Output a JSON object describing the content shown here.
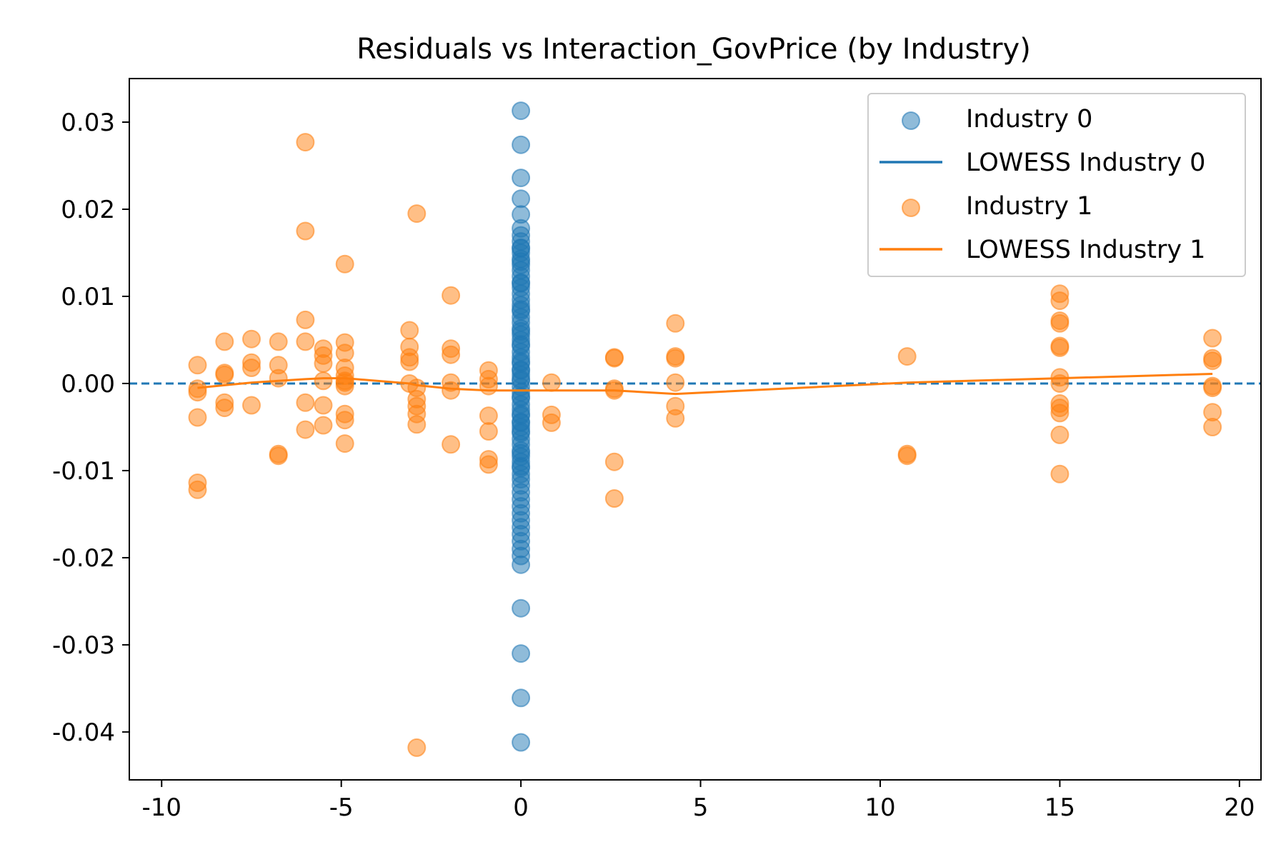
{
  "chart_data": {
    "type": "scatter",
    "title": "Residuals vs Interaction_GovPrice (by Industry)",
    "xlabel": "",
    "ylabel": "",
    "xlim": [
      -10.9,
      20.6
    ],
    "ylim": [
      -0.0455,
      0.035
    ],
    "xticks": [
      -10,
      -5,
      0,
      5,
      10,
      15,
      20
    ],
    "xtick_labels": [
      "-10",
      "-5",
      "0",
      "5",
      "10",
      "15",
      "20"
    ],
    "yticks": [
      0.03,
      0.02,
      0.01,
      0.0,
      -0.01,
      -0.02,
      -0.03,
      -0.04
    ],
    "ytick_labels": [
      "0.03",
      "0.02",
      "0.01",
      "0.00",
      "-0.01",
      "-0.02",
      "-0.03",
      "-0.04"
    ],
    "grid": false,
    "legend_position": "top-right",
    "reference_line": {
      "y": 0.0,
      "style": "dashed",
      "color": "#1f77b4"
    },
    "series": [
      {
        "name": "Industry 0",
        "kind": "scatter",
        "color": "#1f77b4",
        "x": [
          0,
          0,
          0,
          0,
          0,
          0,
          0,
          0,
          0,
          0,
          0,
          0,
          0,
          0,
          0,
          0,
          0,
          0,
          0,
          0,
          0,
          0,
          0,
          0,
          0,
          0,
          0,
          0,
          0,
          0,
          0,
          0,
          0,
          0,
          0,
          0,
          0,
          0,
          0,
          0,
          0,
          0,
          0,
          0,
          0,
          0,
          0,
          0,
          0,
          0,
          0,
          0,
          0,
          0,
          0,
          0,
          0,
          0,
          0,
          0,
          0,
          0,
          0,
          0,
          0,
          0,
          0,
          0,
          0,
          0,
          0,
          0,
          0,
          0,
          0,
          0,
          0,
          0,
          0,
          0
        ],
        "y": [
          0.0313,
          0.0274,
          0.0236,
          0.0212,
          0.0194,
          0.0178,
          0.017,
          0.0163,
          0.0156,
          0.015,
          0.0143,
          0.0136,
          0.013,
          0.0123,
          0.0116,
          0.011,
          0.0103,
          0.0096,
          0.009,
          0.0083,
          0.0076,
          0.007,
          0.0063,
          0.0056,
          0.005,
          0.0043,
          0.0036,
          0.003,
          0.0023,
          0.0016,
          0.001,
          0.0003,
          -0.0004,
          -0.001,
          -0.0017,
          -0.0024,
          -0.003,
          -0.0037,
          -0.0044,
          -0.005,
          -0.0057,
          -0.0064,
          -0.007,
          -0.0077,
          -0.0084,
          -0.009,
          -0.0097,
          -0.0104,
          -0.011,
          -0.0117,
          -0.0125,
          -0.0133,
          -0.0141,
          -0.0149,
          -0.0157,
          -0.0165,
          -0.0173,
          -0.0181,
          -0.019,
          -0.0198,
          -0.0208,
          -0.0258,
          -0.031,
          -0.0361,
          -0.0412,
          0.006,
          0.0045,
          0.0025,
          0.0005,
          -0.0015,
          -0.0035,
          -0.0055,
          0.0085,
          0.0115,
          0.014,
          -0.008,
          -0.0095,
          0.0155,
          -0.0045,
          0.0015
        ]
      },
      {
        "name": "LOWESS Industry 0",
        "kind": "line",
        "color": "#1f77b4",
        "x": [],
        "y": []
      },
      {
        "name": "Industry 1",
        "kind": "scatter",
        "color": "#ff7f0e",
        "x": [
          -9,
          -9,
          -9,
          -9,
          -9,
          -9,
          -8.25,
          -8.25,
          -8.25,
          -8.25,
          -8.25,
          -7.5,
          -7.5,
          -7.5,
          -7.5,
          -6.75,
          -6.75,
          -6.75,
          -6.75,
          -6.75,
          -6,
          -6,
          -6,
          -6,
          -6,
          -6,
          -5.5,
          -5.5,
          -5.5,
          -5.5,
          -5.5,
          -5.5,
          -4.9,
          -4.9,
          -4.9,
          -4.9,
          -4.9,
          -4.9,
          -4.9,
          -4.9,
          -4.9,
          -4.9,
          -4.9,
          -3.1,
          -3.1,
          -3.1,
          -3.1,
          -3.1,
          -2.9,
          -2.9,
          -2.9,
          -2.9,
          -2.9,
          -2.9,
          -2.9,
          -1.95,
          -1.95,
          -1.95,
          -1.95,
          -1.95,
          -1.95,
          -0.9,
          -0.9,
          -0.9,
          -0.9,
          -0.9,
          -0.9,
          -0.9,
          0.85,
          0.85,
          0.85,
          2.6,
          2.6,
          2.6,
          2.6,
          2.6,
          2.6,
          4.3,
          4.3,
          4.3,
          4.3,
          4.3,
          4.3,
          10.75,
          10.75,
          10.75,
          15,
          15,
          15,
          15,
          15,
          15,
          15,
          15,
          15,
          15,
          15,
          15,
          15,
          19.25,
          19.25,
          19.25,
          19.25,
          19.25,
          19.25,
          19.25
        ],
        "y": [
          0.0021,
          -0.0006,
          -0.001,
          -0.0039,
          -0.0114,
          -0.0122,
          0.0048,
          0.0012,
          0.001,
          -0.0022,
          -0.0028,
          0.0051,
          0.0024,
          0.0018,
          -0.0025,
          0.0048,
          0.0021,
          0.0006,
          -0.0081,
          -0.0083,
          0.0277,
          0.0175,
          0.0073,
          0.0048,
          -0.0022,
          -0.0053,
          0.004,
          0.0032,
          0.0023,
          0.0003,
          -0.0025,
          -0.0048,
          0.0137,
          0.0047,
          0.0035,
          0.0018,
          0.0009,
          0.0003,
          0.0001,
          -0.0035,
          -0.0042,
          -0.0069,
          -0.0003,
          0.0061,
          0.0042,
          0.003,
          0.0025,
          0.0,
          0.0195,
          -0.0005,
          -0.0018,
          -0.0026,
          -0.0035,
          -0.0047,
          -0.0418,
          0.0101,
          0.004,
          0.0033,
          0.0001,
          -0.0008,
          -0.007,
          0.0015,
          0.0005,
          -0.0037,
          -0.0055,
          -0.0087,
          -0.0093,
          -0.0003,
          0.0001,
          -0.0036,
          -0.0045,
          0.003,
          0.0029,
          -0.0006,
          -0.0008,
          -0.009,
          -0.0132,
          0.0069,
          0.0031,
          0.0029,
          0.0001,
          -0.0026,
          -0.004,
          0.0031,
          -0.0081,
          -0.0083,
          0.0103,
          0.0095,
          0.0072,
          0.0069,
          0.0043,
          0.0041,
          0.0007,
          -0.0023,
          -0.0028,
          -0.0034,
          -0.0059,
          -0.0104,
          0.0,
          0.0052,
          0.0029,
          0.0026,
          -0.0003,
          -0.0033,
          -0.005,
          -0.0005
        ]
      },
      {
        "name": "LOWESS Industry 1",
        "kind": "line",
        "color": "#ff7f0e",
        "x": [
          -9,
          -8.25,
          -7.5,
          -6.75,
          -6,
          -5.5,
          -4.9,
          -3.1,
          -2.9,
          -1.95,
          -0.9,
          0,
          0.85,
          2.6,
          4.3,
          10.75,
          15,
          19.25
        ],
        "y": [
          -0.0005,
          -0.0002,
          0.0001,
          0.0003,
          0.0005,
          0.0006,
          0.0006,
          0.0,
          -0.0002,
          -0.0006,
          -0.0008,
          -0.0008,
          -0.0008,
          -0.0008,
          -0.0012,
          0.0001,
          0.0006,
          0.0011
        ]
      }
    ]
  }
}
